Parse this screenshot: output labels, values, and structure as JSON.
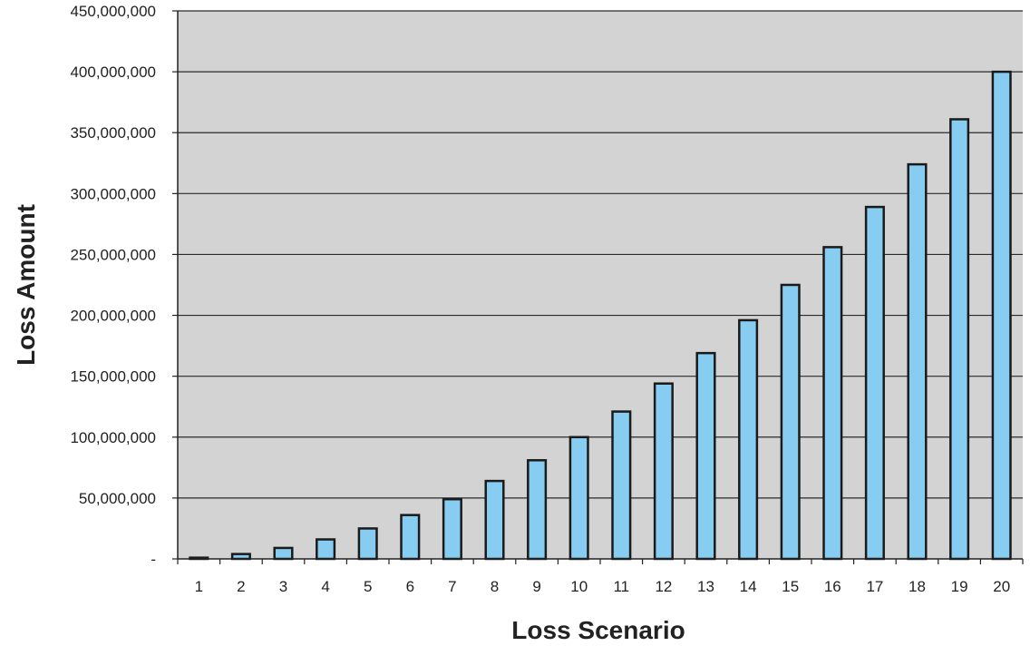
{
  "chart_data": {
    "type": "bar",
    "title": "",
    "xlabel": "Loss Scenario",
    "ylabel": "Loss Amount",
    "categories": [
      "1",
      "2",
      "3",
      "4",
      "5",
      "6",
      "7",
      "8",
      "9",
      "10",
      "11",
      "12",
      "13",
      "14",
      "15",
      "16",
      "17",
      "18",
      "19",
      "20"
    ],
    "values": [
      1000000,
      4000000,
      9000000,
      16000000,
      25000000,
      36000000,
      49000000,
      64000000,
      81000000,
      100000000,
      121000000,
      144000000,
      169000000,
      196000000,
      225000000,
      256000000,
      289000000,
      324000000,
      361000000,
      400000000
    ],
    "ylim": [
      0,
      450000000
    ],
    "yticks": [
      0,
      50000000,
      100000000,
      150000000,
      200000000,
      250000000,
      300000000,
      350000000,
      400000000,
      450000000
    ],
    "ytick_labels": [
      "-",
      "50,000,000",
      "100,000,000",
      "150,000,000",
      "200,000,000",
      "250,000,000",
      "300,000,000",
      "350,000,000",
      "400,000,000",
      "450,000,000"
    ],
    "grid": true,
    "colors": {
      "plot_background": "#d3d3d3",
      "bar_fill": "#87cdf2",
      "bar_stroke": "#1a1a1a",
      "gridline": "#2a2a2a"
    }
  }
}
